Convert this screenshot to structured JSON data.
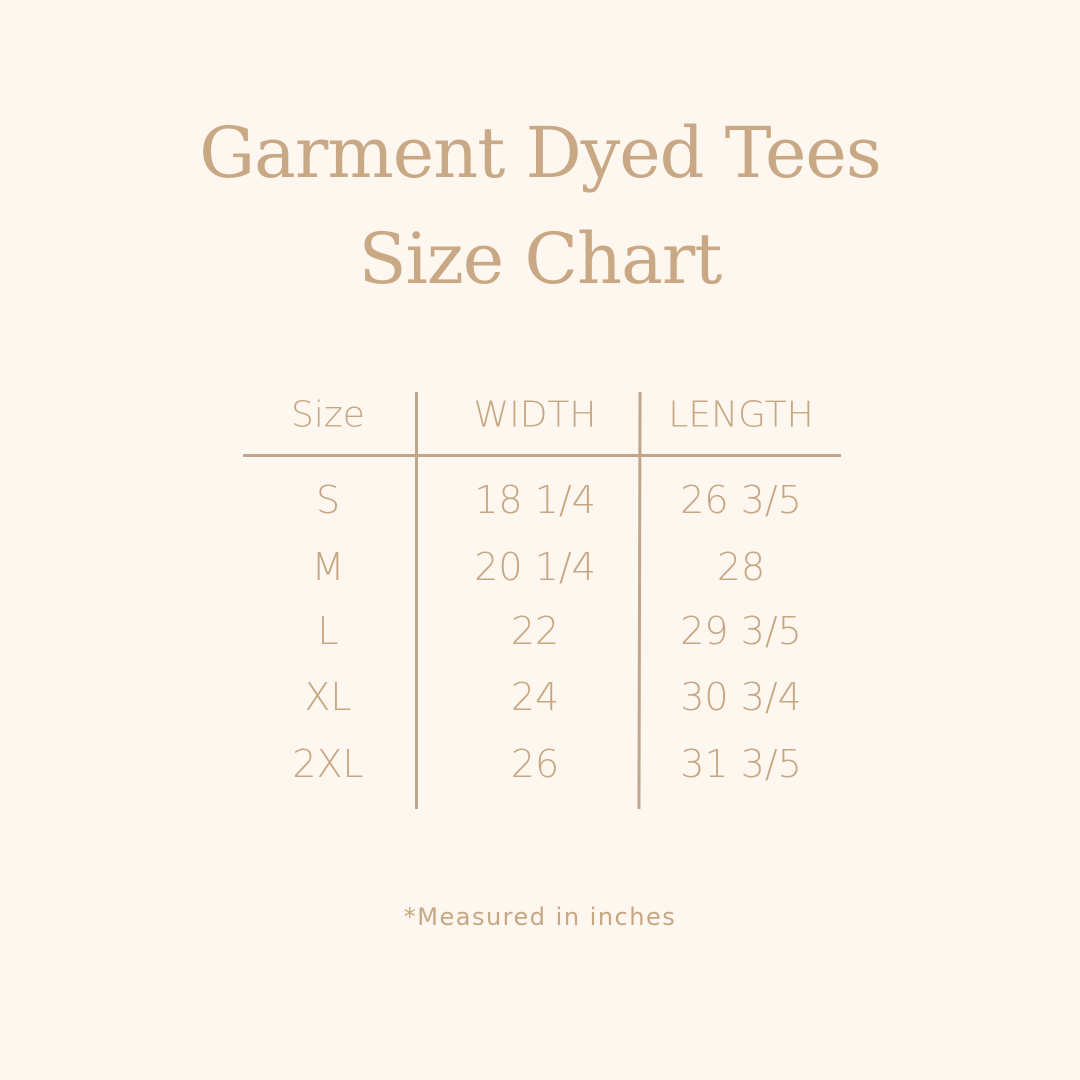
{
  "title": {
    "line1": "Garment Dyed Tees",
    "line2": "Size Chart"
  },
  "colors": {
    "background": "#fdf7ef",
    "text": "#c6a784",
    "lines": "#bfa68c"
  },
  "chart_data": {
    "type": "table",
    "columns": [
      "Size",
      "WIDTH",
      "LENGTH"
    ],
    "rows": [
      [
        "S",
        "18 1/4",
        "26 3/5"
      ],
      [
        "M",
        "20 1/4",
        "28"
      ],
      [
        "L",
        "22",
        "29 3/5"
      ],
      [
        "XL",
        "24",
        "30 3/4"
      ],
      [
        "2XL",
        "26",
        "31 3/5"
      ]
    ]
  },
  "footnote": "*Measured in inches"
}
